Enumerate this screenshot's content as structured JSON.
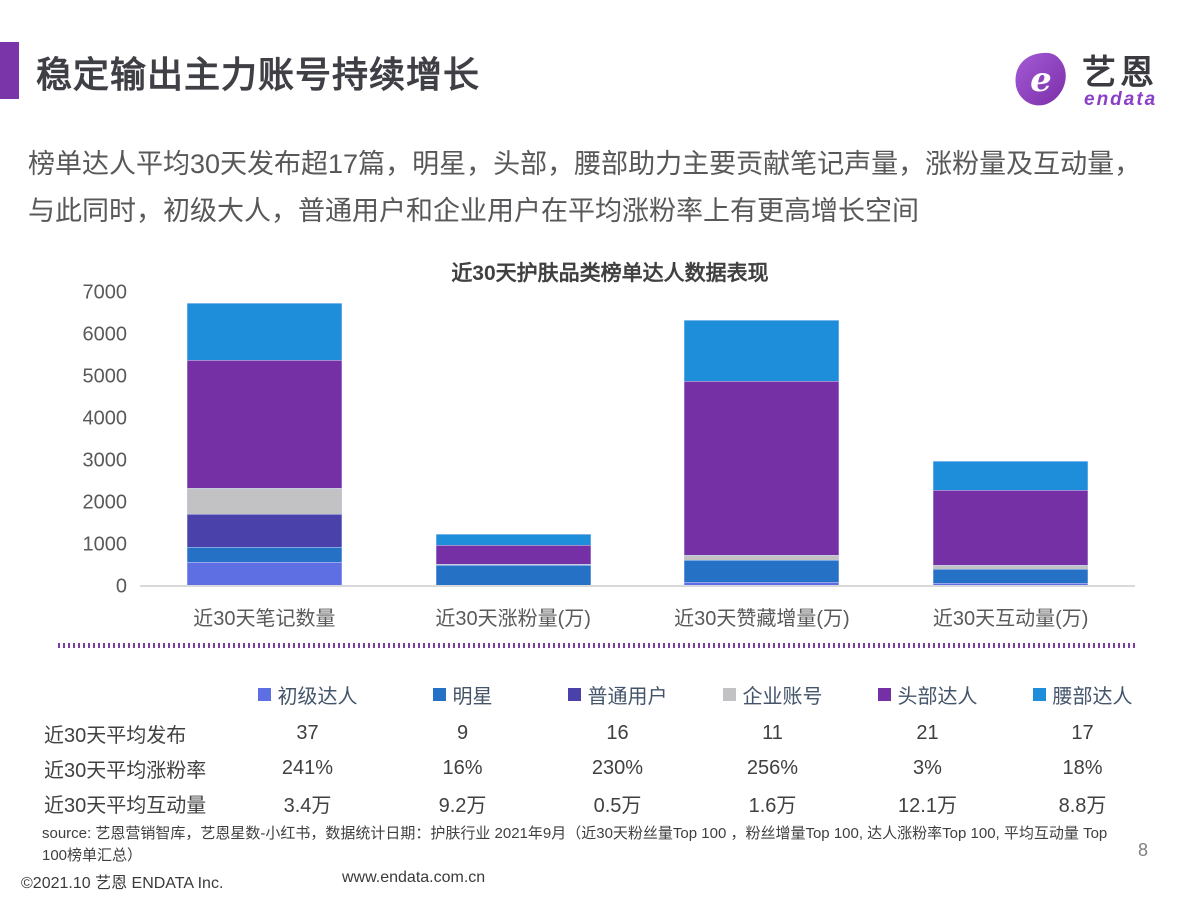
{
  "header": {
    "title": "稳定输出主力账号持续增长",
    "logo": {
      "brand_cn": "艺恩",
      "brand_en": "endata"
    }
  },
  "intro": {
    "line1": "榜单达人平均30天发布超17篇，明星，头部，腰部助力主要贡献笔记声量，涨粉量及互动量，",
    "line2": "与此同时，初级大人，普通用户和企业用户在平均涨粉率上有更高增长空间"
  },
  "chart_data": {
    "type": "bar",
    "stacked": true,
    "title": "近30天护肤品类榜单达人数据表现",
    "categories": [
      "近30天笔记数量",
      "近30天涨粉量(万)",
      "近30天赞藏增量(万)",
      "近30天互动量(万)"
    ],
    "series": [
      {
        "name": "初级达人",
        "color": "#5E6EE3",
        "values": [
          550,
          0,
          80,
          40
        ]
      },
      {
        "name": "明星",
        "color": "#2471C6",
        "values": [
          350,
          470,
          520,
          330
        ]
      },
      {
        "name": "普通用户",
        "color": "#4A41AB",
        "values": [
          800,
          0,
          0,
          0
        ]
      },
      {
        "name": "企业账号",
        "color": "#C2C1C4",
        "values": [
          600,
          40,
          110,
          100
        ]
      },
      {
        "name": "头部达人",
        "color": "#7630A5",
        "values": [
          3070,
          450,
          4140,
          1790
        ]
      },
      {
        "name": "腰部达人",
        "color": "#1E8EDB",
        "values": [
          1350,
          260,
          1470,
          700
        ]
      }
    ],
    "ylim": [
      0,
      7000
    ],
    "ytick_step": 1000,
    "grid": false,
    "legend_position": "bottom"
  },
  "stats_table": {
    "rows": [
      {
        "label": "近30天平均发布",
        "values": [
          "37",
          "9",
          "16",
          "11",
          "21",
          "17"
        ]
      },
      {
        "label": "近30天平均涨粉率",
        "values": [
          "241%",
          "16%",
          "230%",
          "256%",
          "3%",
          "18%"
        ]
      },
      {
        "label": "近30天平均互动量",
        "values": [
          "3.4万",
          "9.2万",
          "0.5万",
          "1.6万",
          "12.1万",
          "8.8万"
        ]
      }
    ]
  },
  "source_note": {
    "line1": "source: 艺恩营销智库，艺恩星数-小红书，数据统计日期：护肤行业 2021年9月（近30天粉丝量Top 100 ，粉丝增量Top 100, 达人涨粉率Top 100, 平均互动量",
    "line2": "Top 100榜单汇总）"
  },
  "page_number": "8",
  "footer": {
    "copyright": "©2021.10 艺恩 ENDATA Inc.",
    "website": "www.endata.com.cn"
  },
  "colors": {
    "accent": "#7A35A8",
    "title_text": "#3F3F46",
    "body_text": "#58585A",
    "axis_text": "#595959",
    "dotted_line": "#7B3FA0"
  }
}
